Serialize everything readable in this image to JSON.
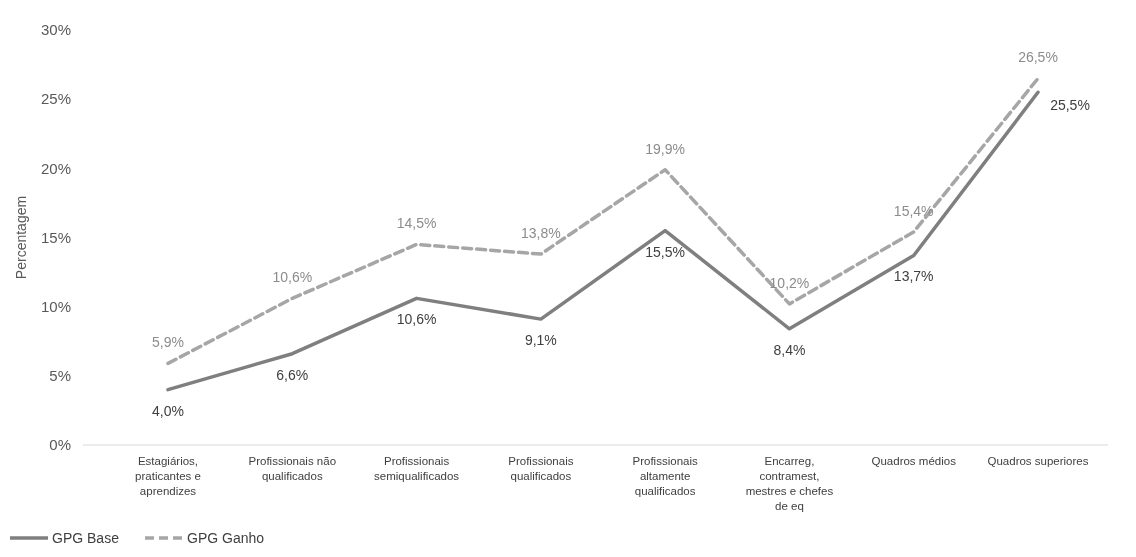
{
  "chart_data": {
    "type": "line",
    "ylabel": "Percentagem",
    "categories": [
      "Estagiários, praticantes e aprendizes",
      "Profissionais não qualificados",
      "Profissionais semiqualificados",
      "Profissionais qualificados",
      "Profissionais altamente qualificados",
      "Encarreg, contramest, mestres e chefes de eq",
      "Quadros médios",
      "Quadros superiores"
    ],
    "series": [
      {
        "name": "GPG Base",
        "color": "#7f7f7f",
        "line_style": "solid",
        "values": [
          4.0,
          6.6,
          10.6,
          9.1,
          15.5,
          8.4,
          13.7,
          25.5
        ],
        "value_labels": [
          "4,0%",
          "6,6%",
          "10,6%",
          "9,1%",
          "15,5%",
          "8,4%",
          "13,7%",
          "25,5%"
        ]
      },
      {
        "name": "GPG Ganho",
        "color": "#a6a6a6",
        "line_style": "dashed",
        "values": [
          5.9,
          10.6,
          14.5,
          13.8,
          19.9,
          10.2,
          15.4,
          26.5
        ],
        "value_labels": [
          "5,9%",
          "10,6%",
          "14,5%",
          "13,8%",
          "19,9%",
          "10,2%",
          "15,4%",
          "26,5%"
        ]
      }
    ],
    "ylim": [
      0,
      30
    ],
    "yticks": [
      {
        "value": 0,
        "label": "0%"
      },
      {
        "value": 5,
        "label": "5%"
      },
      {
        "value": 10,
        "label": "10%"
      },
      {
        "value": 15,
        "label": "15%"
      },
      {
        "value": 20,
        "label": "20%"
      },
      {
        "value": 25,
        "label": "25%"
      },
      {
        "value": 30,
        "label": "30%"
      }
    ],
    "grid": false,
    "legend": "bottom left",
    "marker": "none"
  }
}
